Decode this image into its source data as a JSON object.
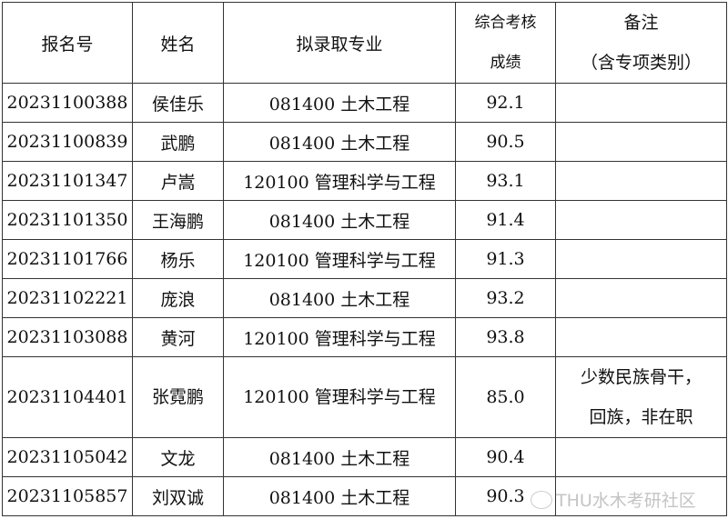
{
  "headers": {
    "id": "报名号",
    "name": "姓名",
    "major": "拟录取专业",
    "score_line1": "综合考核",
    "score_line2": "成绩",
    "note_line1": "备注",
    "note_line2": "（含专项类别）"
  },
  "rows": [
    {
      "id": "20231100388",
      "name": "侯佳乐",
      "major": "081400 土木工程",
      "score": "92.1",
      "note1": "",
      "note2": ""
    },
    {
      "id": "20231100839",
      "name": "武鹏",
      "major": "081400 土木工程",
      "score": "90.5",
      "note1": "",
      "note2": ""
    },
    {
      "id": "20231101347",
      "name": "卢嵩",
      "major": "120100 管理科学与工程",
      "score": "93.1",
      "note1": "",
      "note2": ""
    },
    {
      "id": "20231101350",
      "name": "王海鹏",
      "major": "081400 土木工程",
      "score": "91.4",
      "note1": "",
      "note2": ""
    },
    {
      "id": "20231101766",
      "name": "杨乐",
      "major": "120100 管理科学与工程",
      "score": "91.3",
      "note1": "",
      "note2": ""
    },
    {
      "id": "20231102221",
      "name": "庞浪",
      "major": "081400 土木工程",
      "score": "93.2",
      "note1": "",
      "note2": ""
    },
    {
      "id": "20231103088",
      "name": "黄河",
      "major": "120100 管理科学与工程",
      "score": "93.8",
      "note1": "",
      "note2": ""
    },
    {
      "id": "20231104401",
      "name": "张霓鹏",
      "major": "120100 管理科学与工程",
      "score": "85.0",
      "note1": "少数民族骨干，",
      "note2": "回族，非在职"
    },
    {
      "id": "20231105042",
      "name": "文龙",
      "major": "081400 土木工程",
      "score": "90.4",
      "note1": "",
      "note2": ""
    },
    {
      "id": "20231105857",
      "name": "刘双诚",
      "major": "081400 土木工程",
      "score": "90.3",
      "note1": "",
      "note2": ""
    }
  ],
  "watermark": {
    "text": "THU水木考研社区",
    "icon": "wechat-icon"
  }
}
